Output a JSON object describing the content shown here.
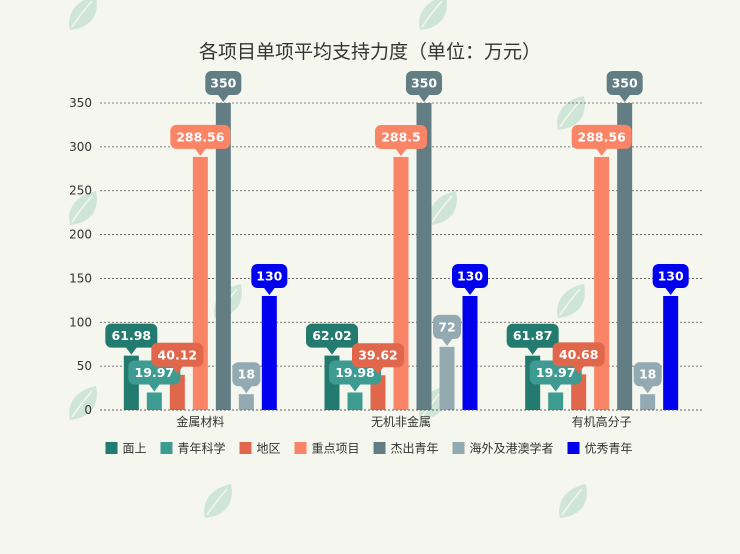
{
  "chart_data": {
    "type": "bar",
    "title": "各项目单项平均支持力度（单位：万元）",
    "xlabel": "",
    "ylabel": "",
    "ylim": [
      0,
      350
    ],
    "yticks": [
      0,
      50,
      100,
      150,
      200,
      250,
      300,
      350
    ],
    "grid": true,
    "legend_position": "bottom",
    "categories": [
      "金属材料",
      "无机非金属",
      "有机高分子"
    ],
    "series": [
      {
        "name": "面上",
        "color": "#237a6e",
        "values": [
          61.98,
          62.02,
          61.87
        ]
      },
      {
        "name": "青年科学",
        "color": "#3e9b91",
        "values": [
          19.97,
          19.98,
          19.97
        ]
      },
      {
        "name": "地区",
        "color": "#e0674b",
        "values": [
          40.12,
          39.62,
          40.68
        ]
      },
      {
        "name": "重点项目",
        "color": "#fa8466",
        "values": [
          288.56,
          288.5,
          288.56
        ]
      },
      {
        "name": "杰出青年",
        "color": "#627e84",
        "values": [
          350,
          350,
          350
        ]
      },
      {
        "name": "海外及港澳学者",
        "color": "#93aab2",
        "values": [
          18,
          72,
          18
        ]
      },
      {
        "name": "优秀青年",
        "color": "#0000ee",
        "values": [
          130,
          130,
          130
        ]
      }
    ],
    "data_labels": [
      [
        "61.98",
        "62.02",
        "61.87"
      ],
      [
        "19.97",
        "19.98",
        "19.97"
      ],
      [
        "40.12",
        "39.62",
        "40.68"
      ],
      [
        "288.56",
        "288.5",
        "288.56"
      ],
      [
        "350",
        "350",
        "350"
      ],
      [
        "18",
        "72",
        "18"
      ],
      [
        "130",
        "130",
        "130"
      ]
    ]
  }
}
